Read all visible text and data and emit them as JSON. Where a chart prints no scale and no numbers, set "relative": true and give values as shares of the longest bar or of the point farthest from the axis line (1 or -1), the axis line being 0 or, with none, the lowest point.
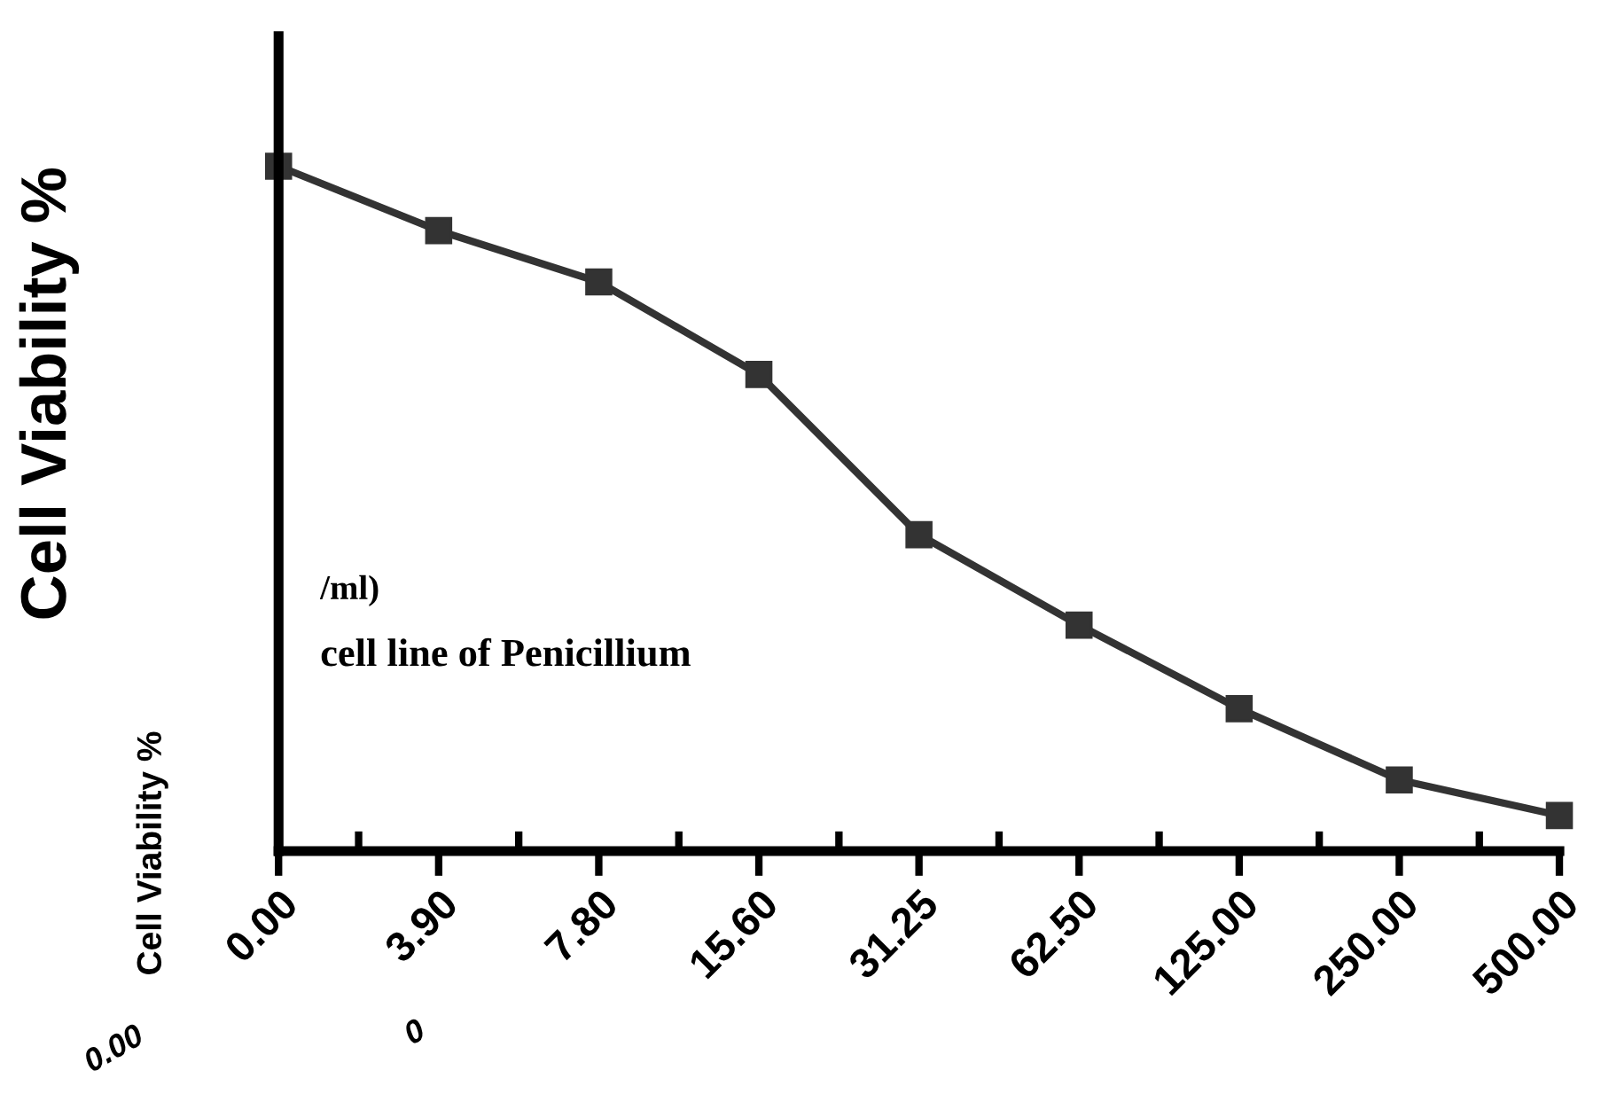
{
  "chart_data": {
    "type": "line",
    "relative": true,
    "ylabel": "Cell Viability %",
    "categories": [
      "0.00",
      "3.90",
      "7.80",
      "15.60",
      "31.25",
      "62.50",
      "125.00",
      "250.00",
      "500.00"
    ],
    "series": [
      {
        "color": "#333333",
        "values": [
          1.0,
          0.906,
          0.831,
          0.696,
          0.462,
          0.33,
          0.208,
          0.104,
          0.052
        ]
      }
    ],
    "marker": "square",
    "line_style": "solid",
    "grid": false,
    "legend": false,
    "annotations": [
      "/ml)",
      "cell line of Penicillium",
      "Cell Viability %",
      "0.00",
      "0"
    ]
  }
}
